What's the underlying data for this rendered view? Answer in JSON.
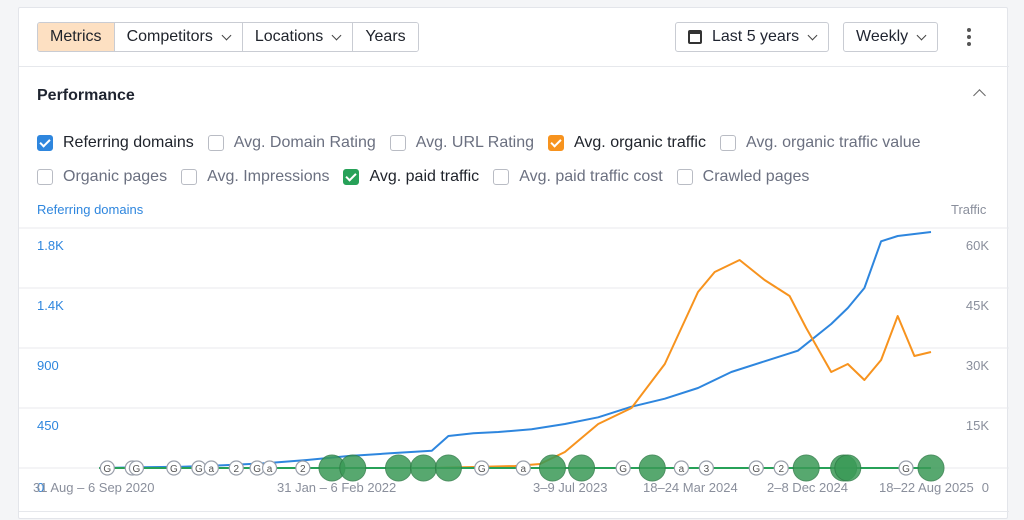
{
  "toolbar": {
    "tabs": [
      {
        "label": "Metrics",
        "active": true,
        "dropdown": false
      },
      {
        "label": "Competitors",
        "active": false,
        "dropdown": true
      },
      {
        "label": "Locations",
        "active": false,
        "dropdown": true
      },
      {
        "label": "Years",
        "active": false,
        "dropdown": false
      }
    ],
    "date_range": "Last 5 years",
    "granularity": "Weekly",
    "calendar_icon": "calendar-icon",
    "more_icon": "kebab-menu-icon"
  },
  "section": {
    "title": "Performance",
    "collapse_icon": "chevron-up-icon"
  },
  "metrics": [
    [
      {
        "label": "Referring domains",
        "checked": true,
        "color": "#2e86de"
      },
      {
        "label": "Avg. Domain Rating",
        "checked": false
      },
      {
        "label": "Avg. URL Rating",
        "checked": false
      },
      {
        "label": "Avg. organic traffic",
        "checked": true,
        "color": "#f7931e"
      },
      {
        "label": "Avg. organic traffic value",
        "checked": false
      }
    ],
    [
      {
        "label": "Organic pages",
        "checked": false
      },
      {
        "label": "Avg. Impressions",
        "checked": false
      },
      {
        "label": "Avg. paid traffic",
        "checked": true,
        "color": "#27a158"
      },
      {
        "label": "Avg. paid traffic cost",
        "checked": false
      },
      {
        "label": "Crawled pages",
        "checked": false
      }
    ]
  ],
  "chart_data": {
    "type": "line",
    "left_axis_title": "Referring domains",
    "right_axis_title": "Traffic",
    "left_ticks": [
      "1.8K",
      "1.4K",
      "900",
      "450",
      "0"
    ],
    "right_ticks": [
      "60K",
      "45K",
      "30K",
      "15K",
      "0"
    ],
    "x_tick_labels": [
      "31 Aug – 6 Sep 2020",
      "31 Jan – 6 Feb 2022",
      "3–9 Jul 2023",
      "18–24 Mar 2024",
      "2–8 Dec 2024",
      "18–22 Aug 2025"
    ],
    "ylim_left": [
      0,
      1800
    ],
    "ylim_right": [
      0,
      60000
    ],
    "grid": true,
    "series": [
      {
        "name": "Referring domains",
        "color": "#2e86de",
        "axis": "left",
        "x": [
          0,
          0.05,
          0.1,
          0.15,
          0.2,
          0.25,
          0.3,
          0.35,
          0.4,
          0.42,
          0.45,
          0.48,
          0.52,
          0.56,
          0.6,
          0.64,
          0.68,
          0.72,
          0.76,
          0.8,
          0.84,
          0.88,
          0.9,
          0.92,
          0.94,
          0.96,
          1.0
        ],
        "values": [
          0,
          5,
          10,
          20,
          35,
          60,
          90,
          110,
          130,
          240,
          260,
          270,
          290,
          330,
          380,
          460,
          520,
          600,
          720,
          800,
          880,
          1080,
          1200,
          1350,
          1700,
          1740,
          1770
        ]
      },
      {
        "name": "Avg. organic traffic",
        "color": "#f7931e",
        "axis": "right",
        "x": [
          0,
          0.4,
          0.5,
          0.53,
          0.56,
          0.6,
          0.64,
          0.68,
          0.72,
          0.74,
          0.77,
          0.8,
          0.83,
          0.85,
          0.88,
          0.9,
          0.92,
          0.94,
          0.96,
          0.98,
          1.0
        ],
        "values": [
          0,
          0,
          500,
          1000,
          4000,
          11000,
          15000,
          26000,
          44000,
          49000,
          52000,
          47000,
          43000,
          35000,
          24000,
          26000,
          22000,
          27000,
          38000,
          28000,
          29000
        ]
      },
      {
        "name": "Avg. paid traffic",
        "color": "#27a158",
        "axis": "right",
        "x": [
          0,
          1.0
        ],
        "values": [
          0,
          0
        ]
      }
    ],
    "annotations": [
      {
        "label": "G",
        "x": 0.01,
        "size": 1
      },
      {
        "label": "G",
        "x": 0.04,
        "size": 1
      },
      {
        "label": "G",
        "x": 0.045,
        "size": 1
      },
      {
        "label": "G",
        "x": 0.09,
        "size": 1
      },
      {
        "label": "G",
        "x": 0.12,
        "size": 1
      },
      {
        "label": "a",
        "x": 0.135,
        "size": 1
      },
      {
        "label": "2",
        "x": 0.165,
        "size": 1
      },
      {
        "label": "G",
        "x": 0.19,
        "size": 1
      },
      {
        "label": "a",
        "x": 0.205,
        "size": 1
      },
      {
        "label": "2",
        "x": 0.245,
        "size": 1
      },
      {
        "label": "",
        "x": 0.28,
        "size": 2
      },
      {
        "label": "",
        "x": 0.305,
        "size": 2
      },
      {
        "label": "",
        "x": 0.36,
        "size": 2
      },
      {
        "label": "",
        "x": 0.39,
        "size": 2
      },
      {
        "label": "",
        "x": 0.42,
        "size": 2
      },
      {
        "label": "G",
        "x": 0.46,
        "size": 1
      },
      {
        "label": "a",
        "x": 0.51,
        "size": 1
      },
      {
        "label": "",
        "x": 0.545,
        "size": 2
      },
      {
        "label": "",
        "x": 0.58,
        "size": 2
      },
      {
        "label": "G",
        "x": 0.63,
        "size": 1
      },
      {
        "label": "",
        "x": 0.665,
        "size": 2
      },
      {
        "label": "a",
        "x": 0.7,
        "size": 1
      },
      {
        "label": "3",
        "x": 0.73,
        "size": 1
      },
      {
        "label": "G",
        "x": 0.79,
        "size": 1
      },
      {
        "label": "2",
        "x": 0.82,
        "size": 1
      },
      {
        "label": "",
        "x": 0.85,
        "size": 2
      },
      {
        "label": "",
        "x": 0.895,
        "size": 2
      },
      {
        "label": "",
        "x": 0.9,
        "size": 2
      },
      {
        "label": "G",
        "x": 0.97,
        "size": 1
      },
      {
        "label": "",
        "x": 1.0,
        "size": 2
      }
    ]
  }
}
